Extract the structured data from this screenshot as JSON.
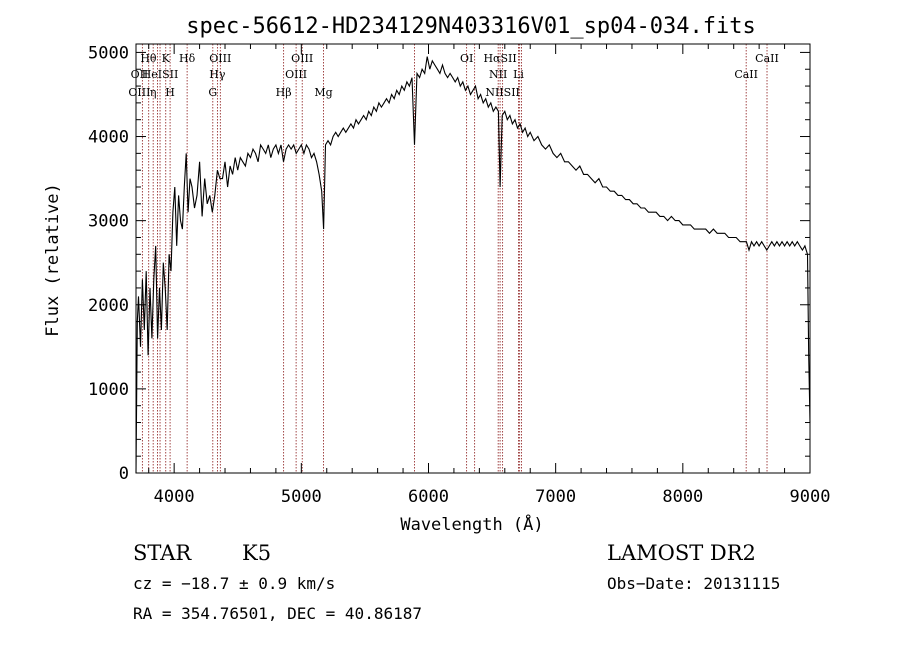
{
  "chart_data": {
    "type": "line",
    "title": "spec-56612-HD234129N403316V01_sp04-034.fits",
    "xlabel": "Wavelength (Å)",
    "ylabel": "Flux (relative)",
    "xlim": [
      3700,
      9000
    ],
    "ylim": [
      0,
      5100
    ],
    "x_ticks": [
      4000,
      5000,
      6000,
      7000,
      8000,
      9000
    ],
    "y_ticks": [
      0,
      1000,
      2000,
      3000,
      4000,
      5000
    ],
    "grid": false,
    "series": [
      {
        "values_xy": [
          [
            3700,
            0
          ],
          [
            3710,
            1800
          ],
          [
            3720,
            2100
          ],
          [
            3735,
            1500
          ],
          [
            3750,
            2300
          ],
          [
            3765,
            1700
          ],
          [
            3780,
            2400
          ],
          [
            3795,
            1400
          ],
          [
            3810,
            2200
          ],
          [
            3825,
            1600
          ],
          [
            3840,
            2300
          ],
          [
            3855,
            2700
          ],
          [
            3870,
            1600
          ],
          [
            3885,
            2200
          ],
          [
            3900,
            1700
          ],
          [
            3915,
            2500
          ],
          [
            3930,
            2200
          ],
          [
            3945,
            1700
          ],
          [
            3960,
            2600
          ],
          [
            3975,
            2400
          ],
          [
            3990,
            3100
          ],
          [
            4005,
            3400
          ],
          [
            4020,
            2700
          ],
          [
            4035,
            3300
          ],
          [
            4050,
            3000
          ],
          [
            4065,
            2900
          ],
          [
            4080,
            3400
          ],
          [
            4095,
            3800
          ],
          [
            4110,
            3100
          ],
          [
            4125,
            3500
          ],
          [
            4140,
            3400
          ],
          [
            4160,
            3150
          ],
          [
            4180,
            3300
          ],
          [
            4200,
            3700
          ],
          [
            4220,
            3050
          ],
          [
            4240,
            3500
          ],
          [
            4260,
            3200
          ],
          [
            4280,
            3300
          ],
          [
            4300,
            3100
          ],
          [
            4320,
            3300
          ],
          [
            4340,
            3600
          ],
          [
            4360,
            3500
          ],
          [
            4380,
            3500
          ],
          [
            4400,
            3700
          ],
          [
            4420,
            3400
          ],
          [
            4440,
            3650
          ],
          [
            4460,
            3550
          ],
          [
            4480,
            3750
          ],
          [
            4500,
            3600
          ],
          [
            4520,
            3750
          ],
          [
            4540,
            3700
          ],
          [
            4560,
            3650
          ],
          [
            4580,
            3800
          ],
          [
            4600,
            3750
          ],
          [
            4620,
            3850
          ],
          [
            4640,
            3800
          ],
          [
            4660,
            3700
          ],
          [
            4680,
            3900
          ],
          [
            4700,
            3850
          ],
          [
            4720,
            3800
          ],
          [
            4740,
            3900
          ],
          [
            4760,
            3750
          ],
          [
            4780,
            3850
          ],
          [
            4800,
            3900
          ],
          [
            4820,
            3800
          ],
          [
            4840,
            3900
          ],
          [
            4860,
            3700
          ],
          [
            4880,
            3850
          ],
          [
            4900,
            3900
          ],
          [
            4920,
            3850
          ],
          [
            4940,
            3900
          ],
          [
            4960,
            3800
          ],
          [
            4980,
            3850
          ],
          [
            5000,
            3900
          ],
          [
            5020,
            3800
          ],
          [
            5040,
            3900
          ],
          [
            5060,
            3850
          ],
          [
            5080,
            3750
          ],
          [
            5100,
            3800
          ],
          [
            5120,
            3700
          ],
          [
            5140,
            3550
          ],
          [
            5160,
            3350
          ],
          [
            5175,
            2900
          ],
          [
            5190,
            3900
          ],
          [
            5210,
            3950
          ],
          [
            5230,
            3900
          ],
          [
            5250,
            4000
          ],
          [
            5270,
            4050
          ],
          [
            5290,
            4000
          ],
          [
            5310,
            4050
          ],
          [
            5330,
            4100
          ],
          [
            5350,
            4050
          ],
          [
            5370,
            4100
          ],
          [
            5390,
            4150
          ],
          [
            5410,
            4100
          ],
          [
            5430,
            4200
          ],
          [
            5450,
            4150
          ],
          [
            5470,
            4200
          ],
          [
            5490,
            4250
          ],
          [
            5510,
            4200
          ],
          [
            5530,
            4300
          ],
          [
            5550,
            4250
          ],
          [
            5570,
            4350
          ],
          [
            5590,
            4300
          ],
          [
            5610,
            4400
          ],
          [
            5630,
            4350
          ],
          [
            5650,
            4400
          ],
          [
            5670,
            4450
          ],
          [
            5690,
            4400
          ],
          [
            5710,
            4500
          ],
          [
            5730,
            4450
          ],
          [
            5750,
            4550
          ],
          [
            5770,
            4500
          ],
          [
            5790,
            4600
          ],
          [
            5810,
            4550
          ],
          [
            5830,
            4650
          ],
          [
            5850,
            4600
          ],
          [
            5870,
            4700
          ],
          [
            5890,
            3900
          ],
          [
            5910,
            4750
          ],
          [
            5930,
            4700
          ],
          [
            5950,
            4800
          ],
          [
            5970,
            4750
          ],
          [
            5990,
            4950
          ],
          [
            6010,
            4800
          ],
          [
            6030,
            4900
          ],
          [
            6050,
            4850
          ],
          [
            6070,
            4800
          ],
          [
            6090,
            4750
          ],
          [
            6110,
            4850
          ],
          [
            6130,
            4750
          ],
          [
            6150,
            4700
          ],
          [
            6170,
            4750
          ],
          [
            6190,
            4700
          ],
          [
            6210,
            4650
          ],
          [
            6230,
            4700
          ],
          [
            6250,
            4600
          ],
          [
            6270,
            4650
          ],
          [
            6290,
            4550
          ],
          [
            6310,
            4600
          ],
          [
            6330,
            4500
          ],
          [
            6350,
            4550
          ],
          [
            6370,
            4600
          ],
          [
            6390,
            4450
          ],
          [
            6410,
            4500
          ],
          [
            6430,
            4400
          ],
          [
            6450,
            4450
          ],
          [
            6470,
            4350
          ],
          [
            6490,
            4400
          ],
          [
            6510,
            4300
          ],
          [
            6530,
            4350
          ],
          [
            6550,
            4300
          ],
          [
            6563,
            3400
          ],
          [
            6580,
            4250
          ],
          [
            6600,
            4300
          ],
          [
            6620,
            4200
          ],
          [
            6640,
            4250
          ],
          [
            6660,
            4150
          ],
          [
            6680,
            4200
          ],
          [
            6700,
            4100
          ],
          [
            6720,
            4150
          ],
          [
            6740,
            4050
          ],
          [
            6760,
            4100
          ],
          [
            6780,
            4000
          ],
          [
            6800,
            4050
          ],
          [
            6830,
            3950
          ],
          [
            6860,
            4000
          ],
          [
            6890,
            3900
          ],
          [
            6920,
            3850
          ],
          [
            6950,
            3900
          ],
          [
            6980,
            3800
          ],
          [
            7010,
            3750
          ],
          [
            7040,
            3800
          ],
          [
            7070,
            3700
          ],
          [
            7100,
            3700
          ],
          [
            7130,
            3650
          ],
          [
            7160,
            3600
          ],
          [
            7190,
            3650
          ],
          [
            7220,
            3550
          ],
          [
            7250,
            3550
          ],
          [
            7280,
            3500
          ],
          [
            7310,
            3450
          ],
          [
            7340,
            3500
          ],
          [
            7370,
            3400
          ],
          [
            7400,
            3400
          ],
          [
            7430,
            3350
          ],
          [
            7460,
            3350
          ],
          [
            7490,
            3300
          ],
          [
            7520,
            3300
          ],
          [
            7550,
            3250
          ],
          [
            7580,
            3250
          ],
          [
            7610,
            3200
          ],
          [
            7640,
            3200
          ],
          [
            7670,
            3150
          ],
          [
            7700,
            3150
          ],
          [
            7730,
            3100
          ],
          [
            7760,
            3100
          ],
          [
            7790,
            3100
          ],
          [
            7820,
            3050
          ],
          [
            7850,
            3050
          ],
          [
            7880,
            3000
          ],
          [
            7910,
            3050
          ],
          [
            7940,
            3000
          ],
          [
            7970,
            3000
          ],
          [
            8000,
            2950
          ],
          [
            8030,
            2950
          ],
          [
            8060,
            2950
          ],
          [
            8090,
            2900
          ],
          [
            8120,
            2900
          ],
          [
            8150,
            2900
          ],
          [
            8180,
            2900
          ],
          [
            8210,
            2850
          ],
          [
            8240,
            2900
          ],
          [
            8270,
            2850
          ],
          [
            8300,
            2850
          ],
          [
            8330,
            2850
          ],
          [
            8360,
            2800
          ],
          [
            8390,
            2800
          ],
          [
            8420,
            2800
          ],
          [
            8450,
            2750
          ],
          [
            8480,
            2750
          ],
          [
            8500,
            2750
          ],
          [
            8520,
            2650
          ],
          [
            8540,
            2750
          ],
          [
            8560,
            2700
          ],
          [
            8580,
            2750
          ],
          [
            8600,
            2700
          ],
          [
            8620,
            2750
          ],
          [
            8640,
            2700
          ],
          [
            8660,
            2650
          ],
          [
            8680,
            2700
          ],
          [
            8700,
            2750
          ],
          [
            8720,
            2700
          ],
          [
            8740,
            2750
          ],
          [
            8760,
            2700
          ],
          [
            8780,
            2750
          ],
          [
            8800,
            2700
          ],
          [
            8820,
            2750
          ],
          [
            8840,
            2700
          ],
          [
            8860,
            2750
          ],
          [
            8880,
            2700
          ],
          [
            8900,
            2750
          ],
          [
            8920,
            2700
          ],
          [
            8940,
            2650
          ],
          [
            8960,
            2700
          ],
          [
            8980,
            2600
          ],
          [
            8990,
            1400
          ],
          [
            9000,
            600
          ]
        ]
      }
    ],
    "line_markers": [
      {
        "label": "Hθ",
        "wl": 3798,
        "row": 0
      },
      {
        "label": "K",
        "wl": 3934,
        "row": 0
      },
      {
        "label": "Hδ",
        "wl": 4102,
        "row": 0
      },
      {
        "label": "OIII",
        "wl": 4363,
        "row": 0
      },
      {
        "label": "OIII",
        "wl": 5007,
        "row": 0
      },
      {
        "label": "OI",
        "wl": 6300,
        "row": 0
      },
      {
        "label": "HαSII",
        "wl": 6563,
        "row": 0
      },
      {
        "label": "CaII",
        "wl": 8662,
        "row": 0
      },
      {
        "label": "OII",
        "wl": 3727,
        "row": 1
      },
      {
        "label": "HeISII",
        "wl": 3889,
        "row": 1
      },
      {
        "label": "Hγ",
        "wl": 4340,
        "row": 1
      },
      {
        "label": "OIII",
        "wl": 4959,
        "row": 1
      },
      {
        "label": "NII",
        "wl": 6548,
        "row": 1
      },
      {
        "label": "Li",
        "wl": 6708,
        "row": 1
      },
      {
        "label": "CaII",
        "wl": 8498,
        "row": 1
      },
      {
        "label": "OIII",
        "wl": 3727,
        "row": 2
      },
      {
        "label": "η",
        "wl": 3835,
        "row": 2
      },
      {
        "label": "H",
        "wl": 3968,
        "row": 2
      },
      {
        "label": "G",
        "wl": 4304,
        "row": 2
      },
      {
        "label": "Hβ",
        "wl": 4861,
        "row": 2
      },
      {
        "label": "Mg",
        "wl": 5175,
        "row": 2
      },
      {
        "label": "NIISII",
        "wl": 6583,
        "row": 2
      }
    ],
    "extra_vlines": [
      3750,
      3800,
      3835,
      3869,
      3889,
      3934,
      3968,
      4102,
      4304,
      4340,
      4363,
      4861,
      4959,
      5007,
      5175,
      5890,
      6300,
      6363,
      6548,
      6563,
      6583,
      6708,
      6717,
      6731,
      8498,
      8662
    ],
    "colors": {
      "spectrum": "#000000",
      "marker_line": "#8b1a1a",
      "axes": "#000000",
      "background": "#ffffff"
    }
  },
  "info": {
    "object_class": "STAR",
    "subclass": "K5",
    "survey": "LAMOST DR2",
    "cz": "cz = −18.7 ± 0.9 km/s",
    "obs_date": "Obs−Date: 20131115",
    "coords": "RA = 354.76501, DEC =  40.86187"
  }
}
